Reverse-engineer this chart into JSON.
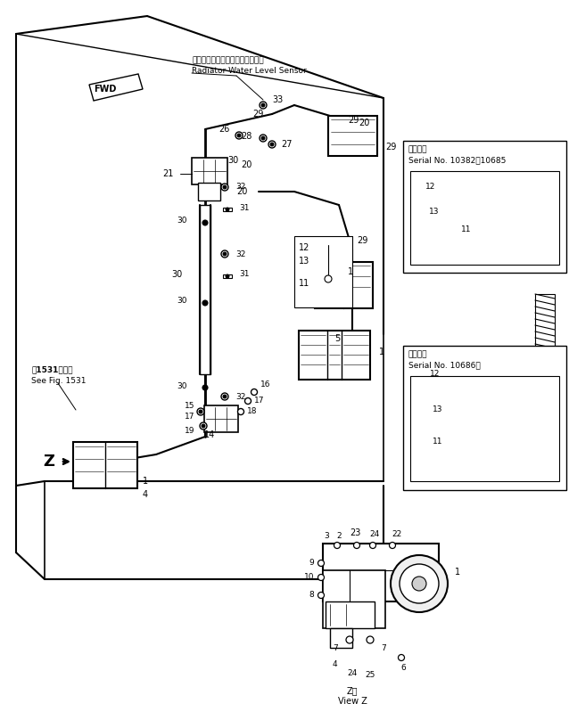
{
  "bg_color": "#ffffff",
  "line_color": "#000000",
  "fig_width": 6.38,
  "fig_height": 8.08,
  "dpi": 100,
  "annotations": {
    "radiator_jp": "ラジエータウォータレベルセンサ",
    "radiator_en": "Radiator Water Level Sensor",
    "see_fig_jp": "図1531図参照",
    "see_fig_en": "See Fig. 1531",
    "serial1_jp": "適用号機",
    "serial1_en": "Serial No. 10382～10685",
    "serial2_jp": "適用号機",
    "serial2_en": "Serial No. 10686～",
    "view_z_jp": "Z視",
    "view_z_en": "View Z",
    "fwd": "FWD"
  }
}
